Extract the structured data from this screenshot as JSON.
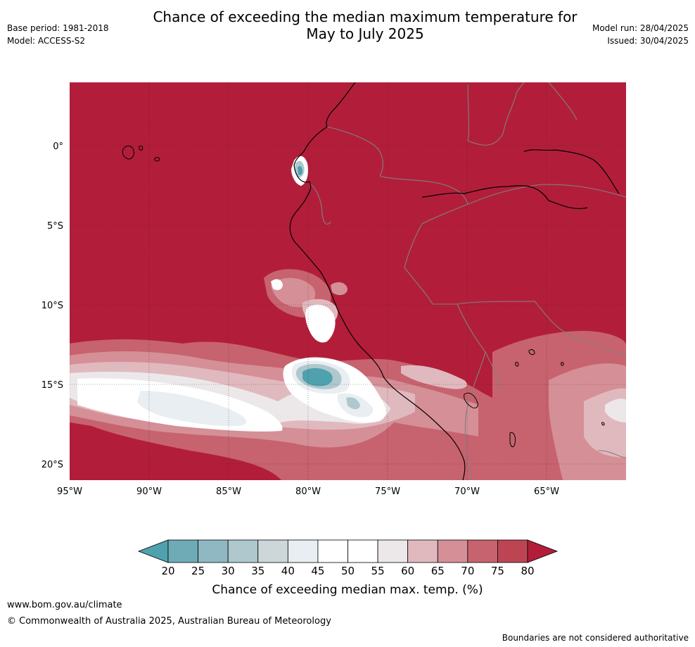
{
  "header": {
    "title_line1": "Chance of exceeding the median maximum temperature for",
    "title_line2": "May to July 2025",
    "base_period": "Base period: 1981-2018",
    "model": "Model: ACCESS-S2",
    "model_run": "Model run: 28/04/2025",
    "issued": "Issued: 30/04/2025"
  },
  "map": {
    "lat_labels": [
      "0°",
      "5°S",
      "10°S",
      "15°S",
      "20°S"
    ],
    "lon_labels": [
      "95°W",
      "90°W",
      "85°W",
      "80°W",
      "75°W",
      "70°W",
      "65°W"
    ],
    "background_color": "#b21e3a"
  },
  "legend": {
    "title": "Chance of exceeding median max. temp. (%)",
    "ticks": [
      "20",
      "25",
      "30",
      "35",
      "40",
      "45",
      "50",
      "55",
      "60",
      "65",
      "70",
      "75",
      "80"
    ],
    "colors": [
      "#4fa1ad",
      "#6eabb7",
      "#8fb8c3",
      "#aec8ce",
      "#cdd7da",
      "#e8eef1",
      "#ffffff",
      "#ffffff",
      "#ece8ea",
      "#e0b9be",
      "#d58f97",
      "#c7636e",
      "#bd4553",
      "#b21e3a"
    ]
  },
  "footer": {
    "link": "www.bom.gov.au/climate",
    "copyright": "© Commonwealth of Australia 2025, Australian Bureau of Meteorology",
    "note": "Boundaries are not considered authoritative"
  }
}
